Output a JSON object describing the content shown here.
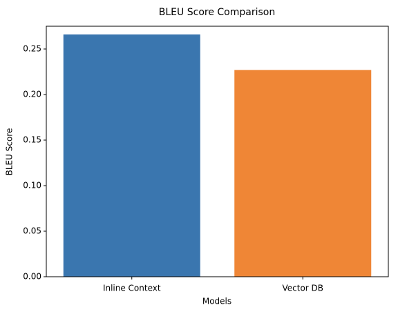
{
  "chart_data": {
    "type": "bar",
    "title": "BLEU Score Comparison",
    "xlabel": "Models",
    "ylabel": "BLEU Score",
    "categories": [
      "Inline Context",
      "Vector DB"
    ],
    "values": [
      0.266,
      0.227
    ],
    "colors": [
      "#3a76af",
      "#ef8636"
    ],
    "ylim": [
      0,
      0.275
    ],
    "yticks": [
      {
        "value": 0,
        "label": "0.00"
      },
      {
        "value": 0.05,
        "label": "0.05"
      },
      {
        "value": 0.1,
        "label": "0.10"
      },
      {
        "value": 0.15,
        "label": "0.15"
      },
      {
        "value": 0.2,
        "label": "0.20"
      },
      {
        "value": 0.25,
        "label": "0.25"
      }
    ],
    "grid": false
  }
}
